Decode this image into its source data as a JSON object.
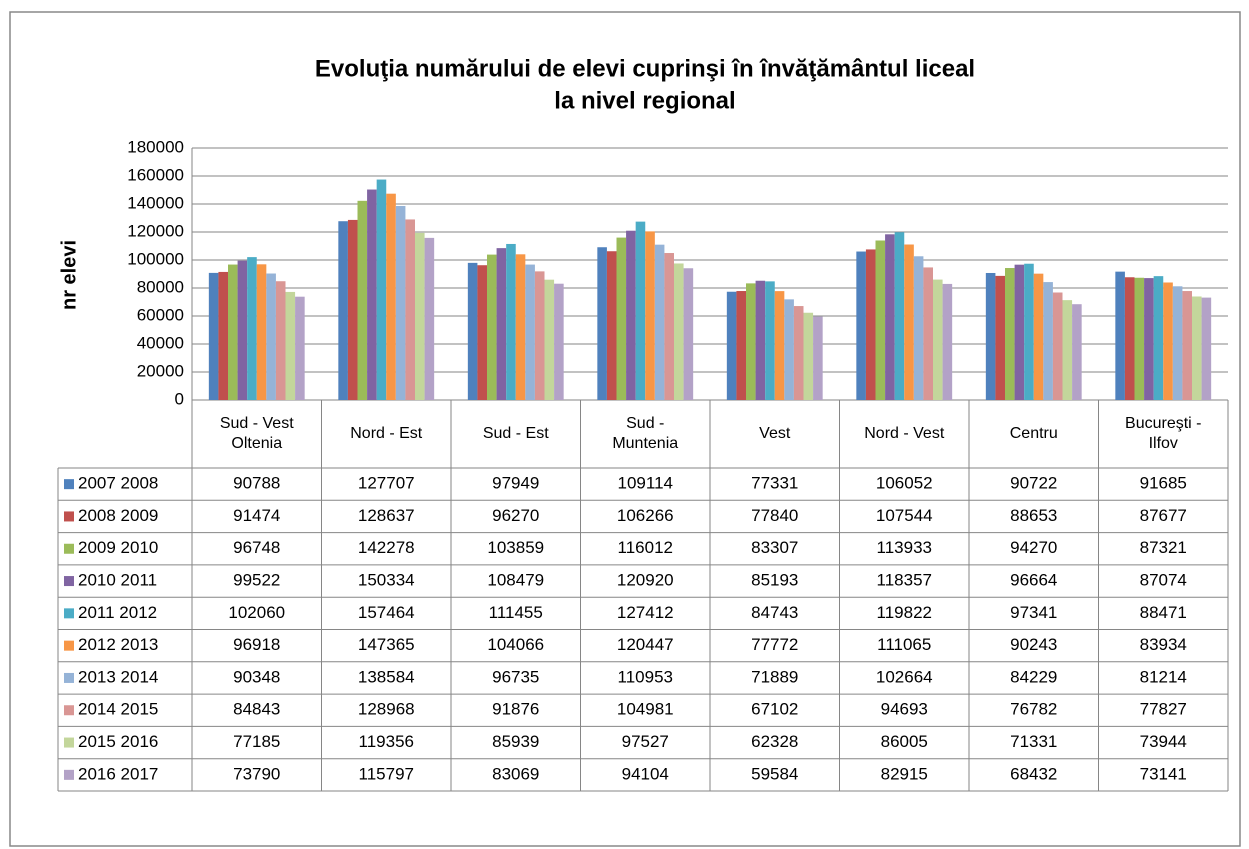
{
  "chart_data": {
    "type": "bar",
    "title": "Evoluţia numărului de elevi cuprinşi în învăţământul liceal",
    "subtitle": "la nivel  regional",
    "ylabel": "nr elevi",
    "categories": [
      "Sud - Vest Oltenia",
      "Nord - Est",
      "Sud - Est",
      "Sud - Muntenia",
      "Vest",
      "Nord - Vest",
      "Centru",
      "Bucureşti - Ilfov"
    ],
    "series": [
      {
        "name": "2007 2008",
        "color": "#4f81bd",
        "values": [
          90788,
          127707,
          97949,
          109114,
          77331,
          106052,
          90722,
          91685
        ]
      },
      {
        "name": "2008 2009",
        "color": "#c0504d",
        "values": [
          91474,
          128637,
          96270,
          106266,
          77840,
          107544,
          88653,
          87677
        ]
      },
      {
        "name": "2009 2010",
        "color": "#9bbb59",
        "values": [
          96748,
          142278,
          103859,
          116012,
          83307,
          113933,
          94270,
          87321
        ]
      },
      {
        "name": "2010 2011",
        "color": "#8064a2",
        "values": [
          99522,
          150334,
          108479,
          120920,
          85193,
          118357,
          96664,
          87074
        ]
      },
      {
        "name": "2011 2012",
        "color": "#4bacc6",
        "values": [
          102060,
          157464,
          111455,
          127412,
          84743,
          119822,
          97341,
          88471
        ]
      },
      {
        "name": "2012 2013",
        "color": "#f79646",
        "values": [
          96918,
          147365,
          104066,
          120447,
          77772,
          111065,
          90243,
          83934
        ]
      },
      {
        "name": "2013 2014",
        "color": "#95b3d7",
        "values": [
          90348,
          138584,
          96735,
          110953,
          71889,
          102664,
          84229,
          81214
        ]
      },
      {
        "name": "2014 2015",
        "color": "#d99694",
        "values": [
          84843,
          128968,
          91876,
          104981,
          67102,
          94693,
          76782,
          77827
        ]
      },
      {
        "name": "2015 2016",
        "color": "#c3d69b",
        "values": [
          77185,
          119356,
          85939,
          97527,
          62328,
          86005,
          71331,
          73944
        ]
      },
      {
        "name": "2016 2017",
        "color": "#b3a2c7",
        "values": [
          73790,
          115797,
          83069,
          94104,
          59584,
          82915,
          68432,
          73141
        ]
      }
    ],
    "ylim": [
      0,
      180000
    ],
    "yticks": [
      0,
      20000,
      40000,
      60000,
      80000,
      100000,
      120000,
      140000,
      160000,
      180000
    ],
    "grid": true
  }
}
